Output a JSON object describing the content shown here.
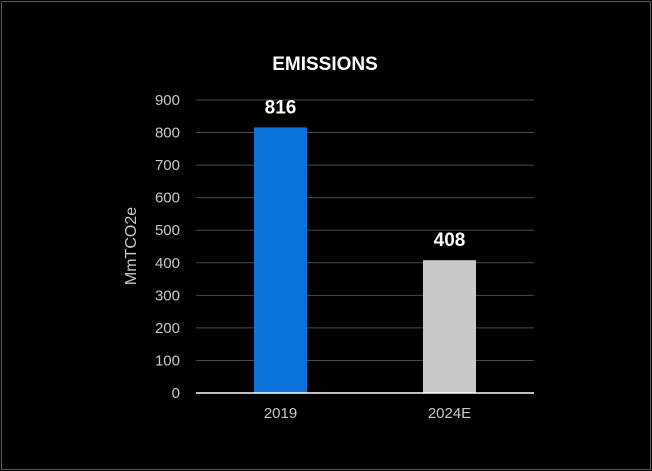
{
  "chart_data": {
    "type": "bar",
    "title": "EMISSIONS",
    "ylabel": "MmTCO2e",
    "xlabel": "",
    "categories": [
      "2019",
      "2024E"
    ],
    "values": [
      816,
      408
    ],
    "data_labels": [
      "816",
      "408"
    ],
    "ylim": [
      0,
      900
    ],
    "yticks": [
      0,
      100,
      200,
      300,
      400,
      500,
      600,
      700,
      800,
      900
    ],
    "ytick_labels": [
      "0",
      "100",
      "200",
      "300",
      "400",
      "500",
      "600",
      "700",
      "800",
      "900"
    ],
    "grid": true,
    "legend": "none",
    "bar_colors": [
      "#0a74da",
      "#c8c9cb"
    ],
    "background": "#000000",
    "grid_color": "#4a4a4a",
    "axis_color": "#ffffff",
    "text_color": "#c8c8c8",
    "title_color": "#ffffff"
  }
}
